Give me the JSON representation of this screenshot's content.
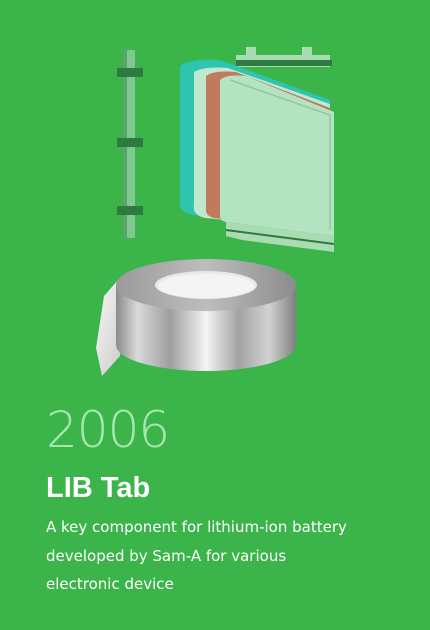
{
  "card": {
    "year": "2006",
    "title": "LIB Tab",
    "description_lines": [
      "A key component for lithium-ion battery",
      "developed by Sam-A for various",
      "electronic device"
    ]
  },
  "colors": {
    "background": "#3bb54a",
    "year_text": "#a8e6b0",
    "title_text": "#ffffff",
    "description_text": "#ffffff"
  },
  "icons": [
    "lib-tab-strip-icon",
    "battery-cell-layers-icon",
    "metal-foil-roll-icon"
  ]
}
